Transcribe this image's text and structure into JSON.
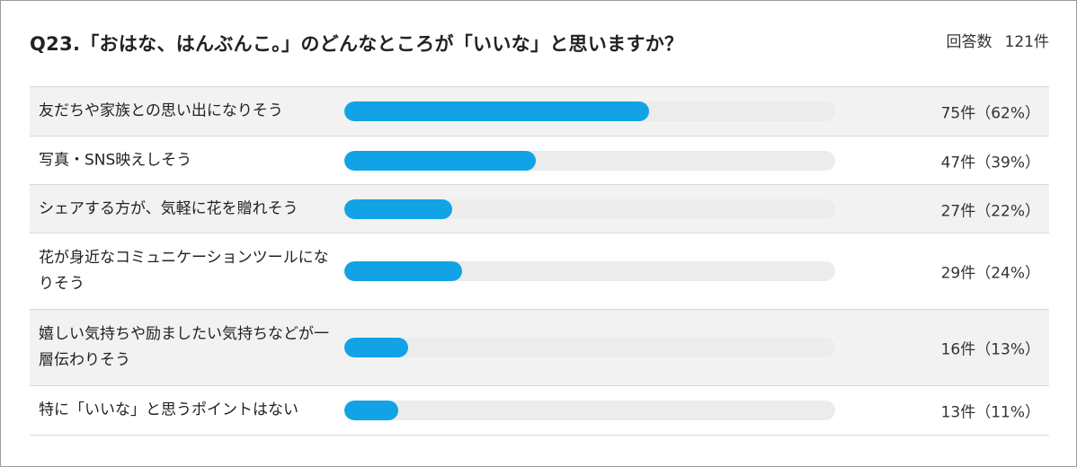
{
  "header": {
    "title": "Q23.「おはな、はんぶんこ。」のどんなところが「いいな」と思いますか？",
    "count_label": "回答数",
    "count_value": "121件"
  },
  "colors": {
    "bar": "#12a3e6",
    "track": "#ececec"
  },
  "chart_data": {
    "type": "bar",
    "orientation": "horizontal",
    "title": "Q23.「おはな、はんぶんこ。」のどんなところが「いいな」と思いますか？",
    "xlim": [
      0,
      100
    ],
    "categories": [
      "友だちや家族との思い出になりそう",
      "写真・SNS映えしそう",
      "シェアする方が、気軽に花を贈れそう",
      "花が身近なコミュニケーションツールになりそう",
      "嬉しい気持ちや励ましたい気持ちなどが一層伝わりそう",
      "特に「いいな」と思うポイントはない"
    ],
    "counts": [
      75,
      47,
      27,
      29,
      16,
      13
    ],
    "percents": [
      62,
      39,
      22,
      24,
      13,
      11
    ],
    "value_labels": [
      "75件（62%）",
      "47件（39%）",
      "27件（22%）",
      "29件（24%）",
      "16件（13%）",
      "13件（11%）"
    ]
  }
}
